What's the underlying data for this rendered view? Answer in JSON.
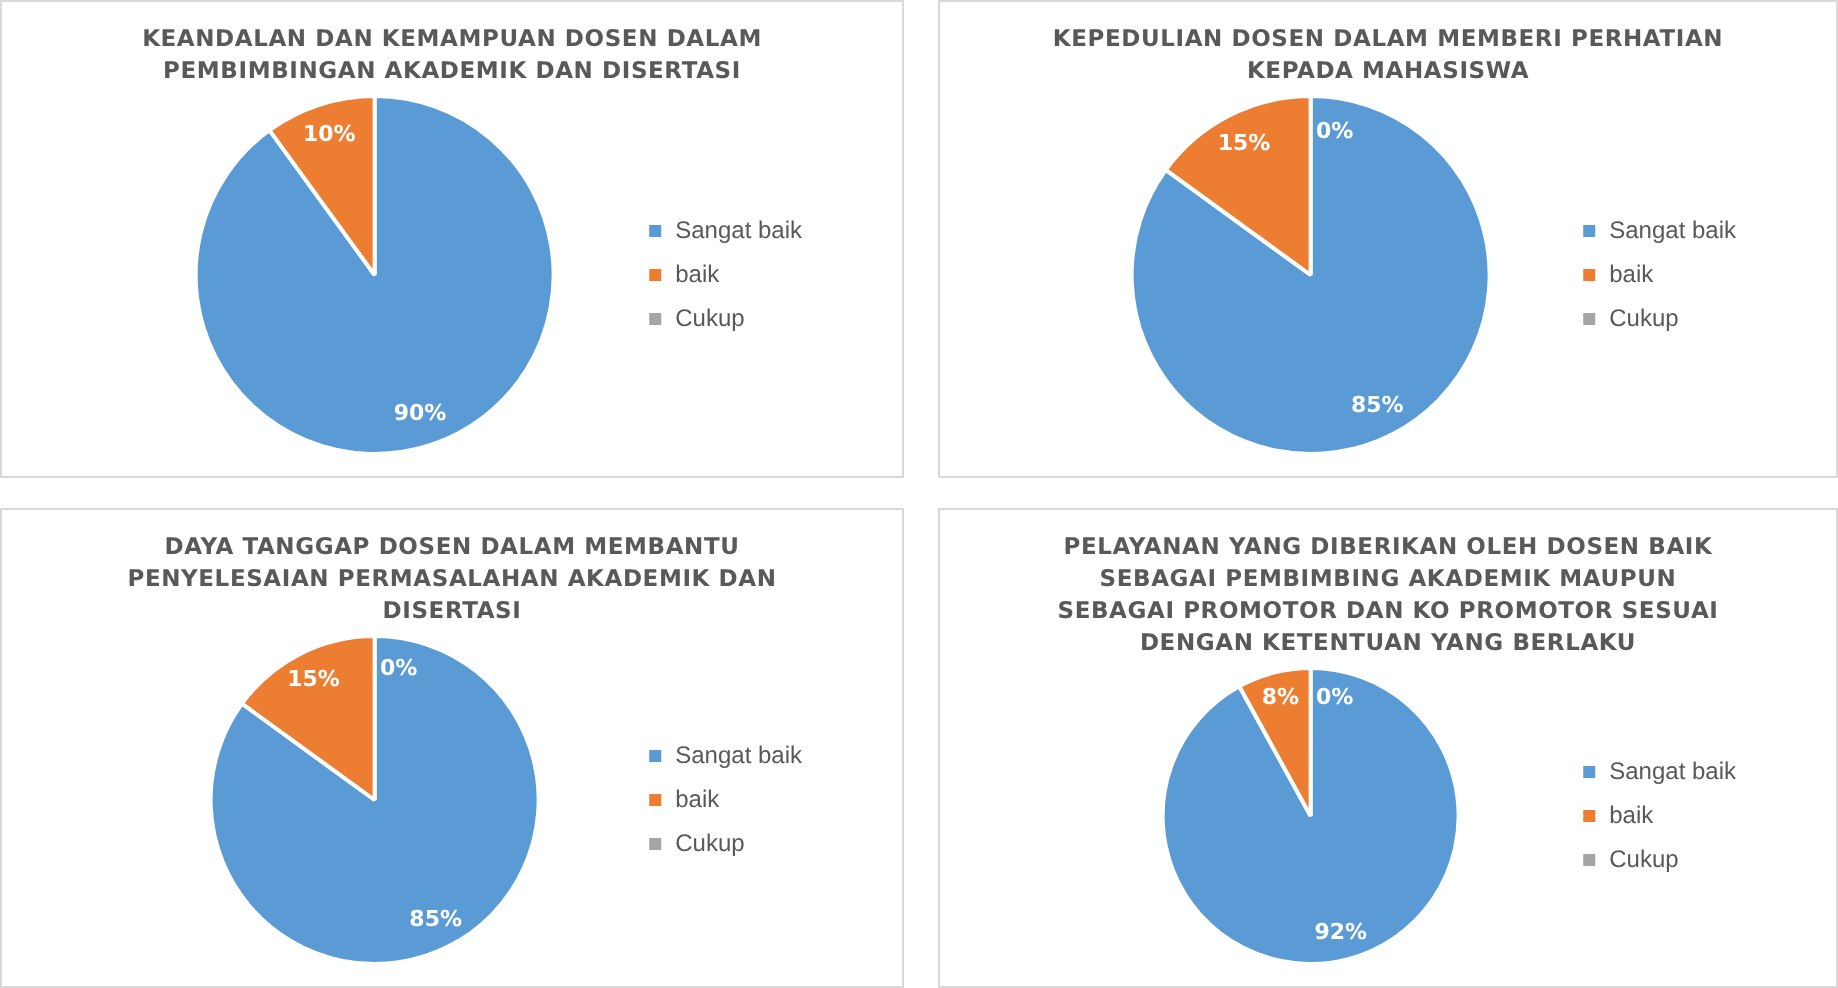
{
  "chart_data": [
    {
      "type": "pie",
      "title": "KEANDALAN DAN KEMAMPUAN DOSEN DALAM PEMBIMBINGAN AKADEMIK DAN DISERTASI",
      "categories": [
        "Sangat baik",
        "baik",
        "Cukup"
      ],
      "values": [
        90,
        10,
        0
      ],
      "value_labels": [
        "90%",
        "10%",
        null
      ],
      "colors": [
        "#5b9bd5",
        "#ed7d31",
        "#a5a5a5"
      ],
      "legend": "right"
    },
    {
      "type": "pie",
      "title": "KEPEDULIAN DOSEN DALAM MEMBERI PERHATIAN KEPADA MAHASISWA",
      "categories": [
        "Sangat baik",
        "baik",
        "Cukup"
      ],
      "values": [
        85,
        15,
        0
      ],
      "value_labels": [
        "85%",
        "15%",
        "0%"
      ],
      "colors": [
        "#5b9bd5",
        "#ed7d31",
        "#a5a5a5"
      ],
      "legend": "right"
    },
    {
      "type": "pie",
      "title": "DAYA TANGGAP DOSEN DALAM MEMBANTU PENYELESAIAN PERMASALAHAN AKADEMIK DAN DISERTASI",
      "categories": [
        "Sangat baik",
        "baik",
        "Cukup"
      ],
      "values": [
        85,
        15,
        0
      ],
      "value_labels": [
        "85%",
        "15%",
        "0%"
      ],
      "colors": [
        "#5b9bd5",
        "#ed7d31",
        "#a5a5a5"
      ],
      "legend": "right"
    },
    {
      "type": "pie",
      "title": "PELAYANAN YANG DIBERIKAN OLEH DOSEN BAIK SEBAGAI PEMBIMBING AKADEMIK MAUPUN SEBAGAI PROMOTOR DAN KO PROMOTOR SESUAI DENGAN KETENTUAN YANG BERLAKU",
      "categories": [
        "Sangat baik",
        "baik",
        "Cukup"
      ],
      "values": [
        92,
        8,
        0
      ],
      "value_labels": [
        "92%",
        "8%",
        "0%"
      ],
      "colors": [
        "#5b9bd5",
        "#ed7d31",
        "#a5a5a5"
      ],
      "legend": "right"
    }
  ]
}
